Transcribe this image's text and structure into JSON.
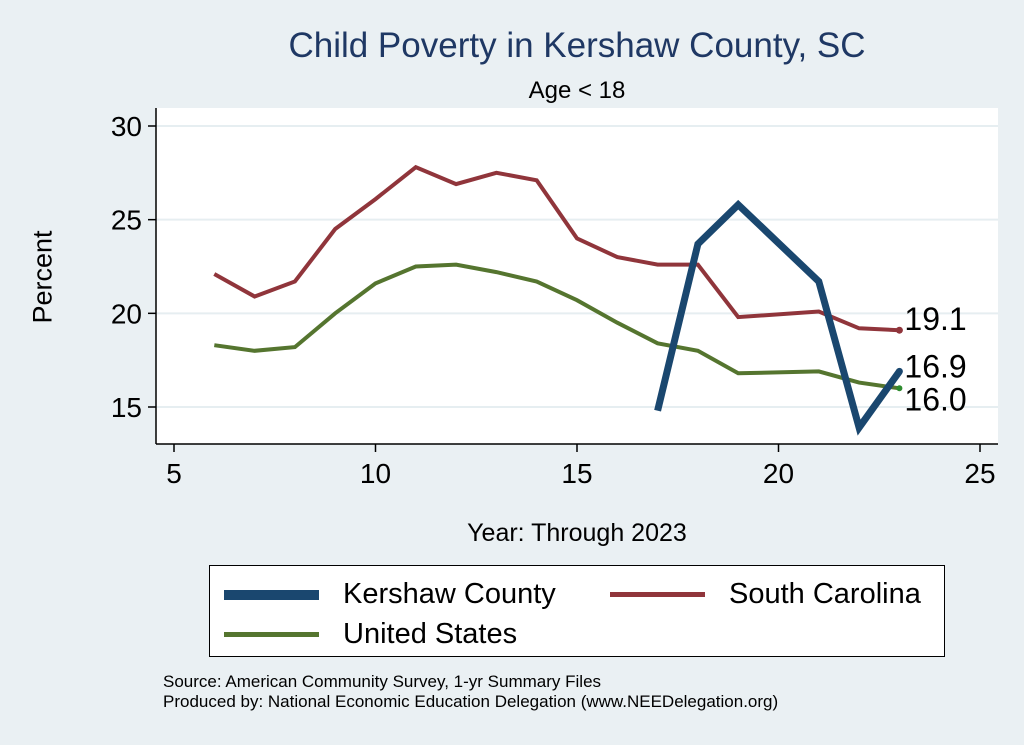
{
  "chart_data": {
    "type": "line",
    "title": "Child Poverty in Kershaw County, SC",
    "subtitle": "Age < 18",
    "xlabel": "Year: Through 2023",
    "ylabel": "Percent",
    "xlim": [
      5,
      25
    ],
    "ylim": [
      13,
      30
    ],
    "xticks": [
      5,
      10,
      15,
      20,
      25
    ],
    "yticks": [
      15,
      20,
      25,
      30
    ],
    "grid": true,
    "series": [
      {
        "name": "Kershaw County",
        "color": "#1a476f",
        "x": [
          17,
          18,
          19,
          21,
          22,
          23
        ],
        "values": [
          14.8,
          23.7,
          25.8,
          21.7,
          13.9,
          16.9
        ],
        "end_label": "16.9"
      },
      {
        "name": "South Carolina",
        "color": "#90353b",
        "x": [
          6,
          7,
          8,
          9,
          10,
          11,
          12,
          13,
          14,
          15,
          16,
          17,
          18,
          19,
          21,
          22,
          23
        ],
        "values": [
          22.1,
          20.9,
          21.7,
          24.5,
          26.1,
          27.8,
          26.9,
          27.5,
          27.1,
          24.0,
          23.0,
          22.6,
          22.6,
          19.8,
          20.1,
          19.2,
          19.1
        ],
        "end_label": "19.1"
      },
      {
        "name": "United States",
        "color": "#55752f",
        "x": [
          6,
          7,
          8,
          9,
          10,
          11,
          12,
          13,
          14,
          15,
          16,
          17,
          18,
          19,
          21,
          22,
          23
        ],
        "values": [
          18.3,
          18.0,
          18.2,
          20.0,
          21.6,
          22.5,
          22.6,
          22.2,
          21.7,
          20.7,
          19.5,
          18.4,
          18.0,
          16.8,
          16.9,
          16.3,
          16.0
        ],
        "end_label": "16.0"
      }
    ],
    "legend": {
      "placement": "bottom",
      "items": [
        "Kershaw County",
        "South Carolina",
        "United States"
      ]
    }
  },
  "source_lines": [
    "Source: American Community Survey, 1-yr Summary Files",
    "Produced by: National Economic Education Delegation (www.NEEDelegation.org)"
  ]
}
